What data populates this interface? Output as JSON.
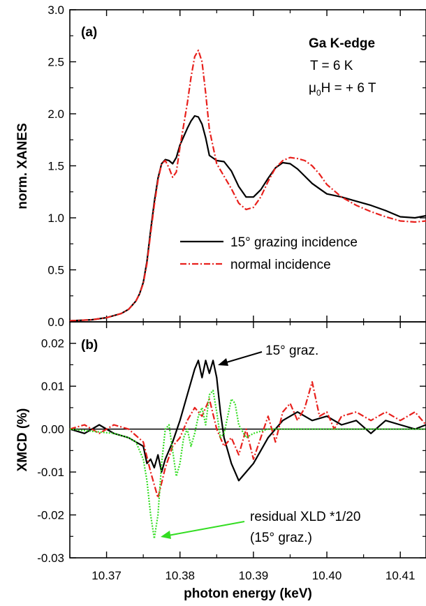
{
  "chart_data": [
    {
      "panel": "(a)",
      "type": "line",
      "ylabel": "norm. XANES",
      "ylim": [
        0.0,
        3.0
      ],
      "yticks": [
        "0.0",
        "0.5",
        "1.0",
        "1.5",
        "2.0",
        "2.5",
        "3.0"
      ],
      "xlim": [
        10.365,
        10.4135
      ],
      "annotations": {
        "edge": "Ga K-edge",
        "temperature": "T = 6 K",
        "field_prefix": "μ",
        "field_sub": "0",
        "field_suffix": "H = + 6 T"
      },
      "legend_position": "lower-right",
      "series": [
        {
          "name": "15° grazing incidence",
          "color": "#000000",
          "style": "solid",
          "x": [
            10.365,
            10.368,
            10.37,
            10.372,
            10.373,
            10.374,
            10.3745,
            10.375,
            10.3755,
            10.376,
            10.3765,
            10.377,
            10.3775,
            10.378,
            10.3785,
            10.379,
            10.3795,
            10.38,
            10.381,
            10.3815,
            10.382,
            10.3825,
            10.383,
            10.3835,
            10.384,
            10.385,
            10.386,
            10.387,
            10.388,
            10.389,
            10.39,
            10.391,
            10.392,
            10.393,
            10.394,
            10.395,
            10.396,
            10.397,
            10.398,
            10.399,
            10.4,
            10.402,
            10.404,
            10.406,
            10.408,
            10.41,
            10.412,
            10.4135
          ],
          "y": [
            0.01,
            0.02,
            0.04,
            0.08,
            0.12,
            0.2,
            0.27,
            0.38,
            0.58,
            0.88,
            1.15,
            1.38,
            1.52,
            1.56,
            1.55,
            1.52,
            1.58,
            1.7,
            1.86,
            1.93,
            1.98,
            1.97,
            1.9,
            1.77,
            1.6,
            1.55,
            1.54,
            1.45,
            1.3,
            1.2,
            1.2,
            1.27,
            1.38,
            1.48,
            1.53,
            1.52,
            1.47,
            1.4,
            1.33,
            1.28,
            1.23,
            1.2,
            1.16,
            1.12,
            1.07,
            1.01,
            1.0,
            1.02
          ]
        },
        {
          "name": "normal incidence",
          "color": "#e8201c",
          "style": "dash-dot",
          "x": [
            10.365,
            10.368,
            10.37,
            10.372,
            10.373,
            10.374,
            10.3745,
            10.375,
            10.3755,
            10.376,
            10.3765,
            10.377,
            10.3775,
            10.378,
            10.3785,
            10.379,
            10.3795,
            10.38,
            10.381,
            10.3815,
            10.382,
            10.3825,
            10.383,
            10.3835,
            10.384,
            10.385,
            10.386,
            10.387,
            10.388,
            10.389,
            10.39,
            10.391,
            10.392,
            10.393,
            10.394,
            10.395,
            10.396,
            10.397,
            10.398,
            10.399,
            10.4,
            10.402,
            10.404,
            10.406,
            10.408,
            10.41,
            10.412,
            10.4135
          ],
          "y": [
            0.01,
            0.02,
            0.04,
            0.08,
            0.12,
            0.2,
            0.27,
            0.37,
            0.56,
            0.85,
            1.12,
            1.36,
            1.52,
            1.55,
            1.48,
            1.39,
            1.44,
            1.68,
            2.1,
            2.35,
            2.55,
            2.61,
            2.5,
            2.2,
            1.85,
            1.52,
            1.4,
            1.28,
            1.14,
            1.08,
            1.1,
            1.2,
            1.35,
            1.48,
            1.55,
            1.58,
            1.57,
            1.55,
            1.5,
            1.42,
            1.32,
            1.2,
            1.12,
            1.06,
            1.01,
            0.97,
            0.96,
            0.97
          ]
        }
      ]
    },
    {
      "panel": "(b)",
      "type": "line",
      "ylabel": "XMCD (%)",
      "xlabel": "photon energy (keV)",
      "ylim": [
        -0.03,
        0.025
      ],
      "yticks": [
        "-0.03",
        "-0.02",
        "-0.01",
        "0.00",
        "0.01",
        "0.02"
      ],
      "xlim": [
        10.365,
        10.4135
      ],
      "xticks": [
        "10.37",
        "10.38",
        "10.39",
        "10.40",
        "10.41"
      ],
      "annotations": {
        "grazing_label": "15° graz.",
        "residual_line1": "residual XLD *1/20",
        "residual_line2": "(15° graz.)"
      },
      "series": [
        {
          "name": "15° grazing incidence",
          "color": "#000000",
          "style": "solid",
          "x": [
            10.365,
            10.367,
            10.369,
            10.371,
            10.373,
            10.375,
            10.3755,
            10.376,
            10.3765,
            10.377,
            10.3775,
            10.378,
            10.379,
            10.38,
            10.381,
            10.382,
            10.3825,
            10.383,
            10.3835,
            10.384,
            10.3845,
            10.385,
            10.3855,
            10.386,
            10.387,
            10.388,
            10.389,
            10.39,
            10.391,
            10.392,
            10.393,
            10.394,
            10.396,
            10.398,
            10.4,
            10.402,
            10.404,
            10.406,
            10.408,
            10.41,
            10.412,
            10.4135
          ],
          "y": [
            0.0,
            -0.001,
            0.001,
            -0.001,
            -0.002,
            -0.004,
            -0.008,
            -0.007,
            -0.009,
            -0.006,
            -0.01,
            -0.007,
            -0.003,
            0.002,
            0.008,
            0.014,
            0.016,
            0.012,
            0.016,
            0.013,
            0.016,
            0.012,
            0.004,
            -0.002,
            -0.008,
            -0.012,
            -0.01,
            -0.008,
            -0.005,
            -0.002,
            0.0,
            0.002,
            0.004,
            0.002,
            0.003,
            0.001,
            0.002,
            -0.001,
            0.002,
            0.001,
            0.0,
            0.001
          ]
        },
        {
          "name": "normal incidence",
          "color": "#e8201c",
          "style": "dash-dot",
          "x": [
            10.365,
            10.367,
            10.369,
            10.371,
            10.373,
            10.375,
            10.376,
            10.377,
            10.378,
            10.379,
            10.38,
            10.381,
            10.382,
            10.383,
            10.384,
            10.385,
            10.386,
            10.387,
            10.388,
            10.389,
            10.39,
            10.391,
            10.392,
            10.393,
            10.394,
            10.395,
            10.396,
            10.397,
            10.398,
            10.399,
            10.4,
            10.401,
            10.402,
            10.404,
            10.406,
            10.408,
            10.41,
            10.412,
            10.4135
          ],
          "y": [
            0.0,
            0.001,
            -0.001,
            0.001,
            0.0,
            -0.003,
            -0.01,
            -0.016,
            -0.009,
            -0.004,
            -0.002,
            0.002,
            0.005,
            0.003,
            0.007,
            0.0,
            -0.004,
            -0.002,
            -0.006,
            0.0,
            -0.007,
            -0.002,
            0.003,
            -0.003,
            0.004,
            0.006,
            0.002,
            0.005,
            0.011,
            0.003,
            0.004,
            0.0,
            0.003,
            0.004,
            0.002,
            0.004,
            0.002,
            0.004,
            0.001
          ]
        },
        {
          "name": "residual XLD *1/20",
          "color": "#33dd22",
          "style": "dotted",
          "x": [
            10.365,
            10.368,
            10.371,
            10.373,
            10.374,
            10.375,
            10.3755,
            10.376,
            10.3765,
            10.377,
            10.3775,
            10.378,
            10.3785,
            10.379,
            10.3795,
            10.38,
            10.3805,
            10.381,
            10.3815,
            10.382,
            10.3825,
            10.383,
            10.3835,
            10.384,
            10.3845,
            10.385,
            10.3855,
            10.386,
            10.3865,
            10.387,
            10.3875,
            10.388,
            10.389,
            10.39,
            10.392,
            10.395,
            10.4,
            10.405,
            10.41,
            10.4135
          ],
          "y": [
            0.0,
            -0.0005,
            -0.001,
            -0.002,
            -0.003,
            -0.007,
            -0.012,
            -0.02,
            -0.0255,
            -0.02,
            -0.008,
            0.0,
            0.001,
            -0.005,
            -0.011,
            -0.008,
            -0.002,
            0.0,
            -0.004,
            -0.001,
            0.003,
            0.005,
            0.001,
            0.008,
            0.009,
            0.004,
            -0.002,
            -0.001,
            0.003,
            0.007,
            0.006,
            0.001,
            -0.002,
            -0.001,
            0.0,
            0.0,
            0.0,
            0.0,
            0.0,
            0.0
          ]
        }
      ]
    }
  ]
}
